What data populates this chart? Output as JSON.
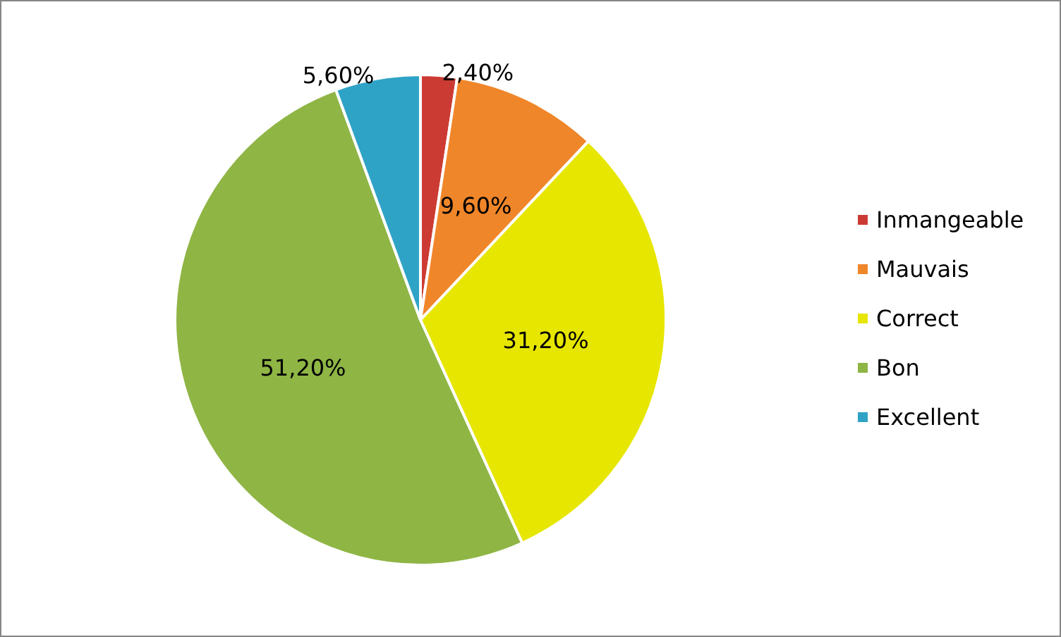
{
  "chart_data": {
    "type": "pie",
    "categories": [
      "Inmangeable",
      "Mauvais",
      "Correct",
      "Bon",
      "Excellent"
    ],
    "values": [
      2.4,
      9.6,
      31.2,
      51.2,
      5.6
    ],
    "colors": [
      "#cc3b33",
      "#f0862a",
      "#e6e600",
      "#8fb545",
      "#2fa3c6"
    ],
    "value_labels": [
      "2,40%",
      "9,60%",
      "31,20%",
      "51,20%",
      "5,60%"
    ],
    "legend": "right"
  }
}
